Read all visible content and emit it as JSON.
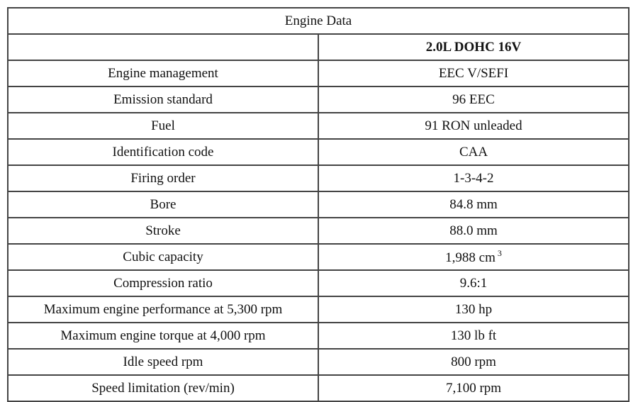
{
  "table": {
    "title": "Engine Data",
    "header": "2.0L DOHC 16V",
    "rows": [
      {
        "label": "Engine management",
        "value": "EEC V/SEFI"
      },
      {
        "label": "Emission standard",
        "value": "96 EEC"
      },
      {
        "label": "Fuel",
        "value": "91 RON unleaded"
      },
      {
        "label": "Identification code",
        "value": "CAA"
      },
      {
        "label": "Firing order",
        "value": "1-3-4-2"
      },
      {
        "label": "Bore",
        "value": "84.8 mm"
      },
      {
        "label": "Stroke",
        "value": "88.0 mm"
      },
      {
        "label": "Cubic capacity",
        "value": "1,988 cm",
        "sup": "3"
      },
      {
        "label": "Compression ratio",
        "value": "9.6:1"
      },
      {
        "label": "Maximum engine performance at 5,300 rpm",
        "value": "130 hp"
      },
      {
        "label": "Maximum engine torque at 4,000 rpm",
        "value": "130 lb ft"
      },
      {
        "label": "Idle speed rpm",
        "value": "800 rpm"
      },
      {
        "label": "Speed limitation (rev/min)",
        "value": "7,100 rpm"
      }
    ]
  }
}
